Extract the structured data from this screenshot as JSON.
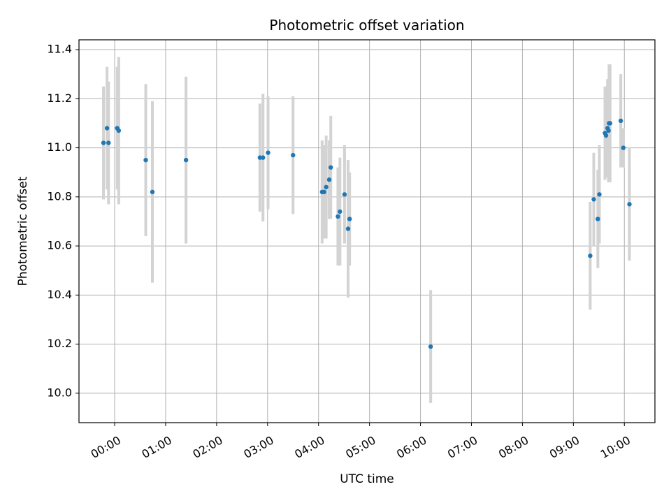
{
  "chart_data": {
    "type": "scatter",
    "title": "Photometric offset variation",
    "xlabel": "UTC time",
    "ylabel": "Photometric offset",
    "x_unit": "hours UTC",
    "xlim": [
      -0.7,
      10.6
    ],
    "ylim": [
      9.88,
      11.44
    ],
    "x_ticks": [
      {
        "value": 0,
        "label": "00:00"
      },
      {
        "value": 1,
        "label": "01:00"
      },
      {
        "value": 2,
        "label": "02:00"
      },
      {
        "value": 3,
        "label": "03:00"
      },
      {
        "value": 4,
        "label": "04:00"
      },
      {
        "value": 5,
        "label": "05:00"
      },
      {
        "value": 6,
        "label": "06:00"
      },
      {
        "value": 7,
        "label": "07:00"
      },
      {
        "value": 8,
        "label": "08:00"
      },
      {
        "value": 9,
        "label": "09:00"
      },
      {
        "value": 10,
        "label": "10:00"
      }
    ],
    "y_ticks": [
      {
        "value": 10.0,
        "label": "10.0"
      },
      {
        "value": 10.2,
        "label": "10.2"
      },
      {
        "value": 10.4,
        "label": "10.4"
      },
      {
        "value": 10.6,
        "label": "10.6"
      },
      {
        "value": 10.8,
        "label": "10.8"
      },
      {
        "value": 11.0,
        "label": "11.0"
      },
      {
        "value": 11.2,
        "label": "11.2"
      },
      {
        "value": 11.4,
        "label": "11.4"
      }
    ],
    "grid": true,
    "colors": {
      "point": "#1f77b4",
      "errorbar": "#d3d3d3",
      "grid": "#b0b0b0"
    },
    "points": [
      {
        "x": -0.22,
        "y": 11.02,
        "err": 0.23
      },
      {
        "x": -0.15,
        "y": 11.08,
        "err": 0.25
      },
      {
        "x": -0.12,
        "y": 11.02,
        "err": 0.25
      },
      {
        "x": 0.05,
        "y": 11.08,
        "err": 0.25
      },
      {
        "x": 0.08,
        "y": 11.07,
        "err": 0.3
      },
      {
        "x": 0.61,
        "y": 10.95,
        "err": 0.31
      },
      {
        "x": 0.74,
        "y": 10.82,
        "err": 0.37
      },
      {
        "x": 1.4,
        "y": 10.95,
        "err": 0.34
      },
      {
        "x": 2.85,
        "y": 10.96,
        "err": 0.22
      },
      {
        "x": 2.91,
        "y": 10.96,
        "err": 0.26
      },
      {
        "x": 3.01,
        "y": 10.98,
        "err": 0.23
      },
      {
        "x": 3.5,
        "y": 10.97,
        "err": 0.24
      },
      {
        "x": 4.07,
        "y": 10.82,
        "err": 0.21
      },
      {
        "x": 4.11,
        "y": 10.82,
        "err": 0.19
      },
      {
        "x": 4.15,
        "y": 10.84,
        "err": 0.21
      },
      {
        "x": 4.21,
        "y": 10.87,
        "err": 0.16
      },
      {
        "x": 4.24,
        "y": 10.92,
        "err": 0.21
      },
      {
        "x": 4.38,
        "y": 10.72,
        "err": 0.2
      },
      {
        "x": 4.42,
        "y": 10.74,
        "err": 0.22
      },
      {
        "x": 4.51,
        "y": 10.81,
        "err": 0.2
      },
      {
        "x": 4.58,
        "y": 10.67,
        "err": 0.28
      },
      {
        "x": 4.61,
        "y": 10.71,
        "err": 0.19
      },
      {
        "x": 6.2,
        "y": 10.19,
        "err": 0.23
      },
      {
        "x": 9.33,
        "y": 10.56,
        "err": 0.22
      },
      {
        "x": 9.4,
        "y": 10.79,
        "err": 0.19
      },
      {
        "x": 9.48,
        "y": 10.71,
        "err": 0.2
      },
      {
        "x": 9.51,
        "y": 10.81,
        "err": 0.2
      },
      {
        "x": 9.62,
        "y": 11.06,
        "err": 0.19
      },
      {
        "x": 9.64,
        "y": 11.05,
        "err": 0.17
      },
      {
        "x": 9.67,
        "y": 11.08,
        "err": 0.2
      },
      {
        "x": 9.69,
        "y": 11.07,
        "err": 0.21
      },
      {
        "x": 9.7,
        "y": 11.1,
        "err": 0.24
      },
      {
        "x": 9.72,
        "y": 11.1,
        "err": 0.24
      },
      {
        "x": 9.93,
        "y": 11.11,
        "err": 0.19
      },
      {
        "x": 9.98,
        "y": 11.0,
        "err": 0.08
      },
      {
        "x": 10.1,
        "y": 10.77,
        "err": 0.23
      }
    ]
  }
}
